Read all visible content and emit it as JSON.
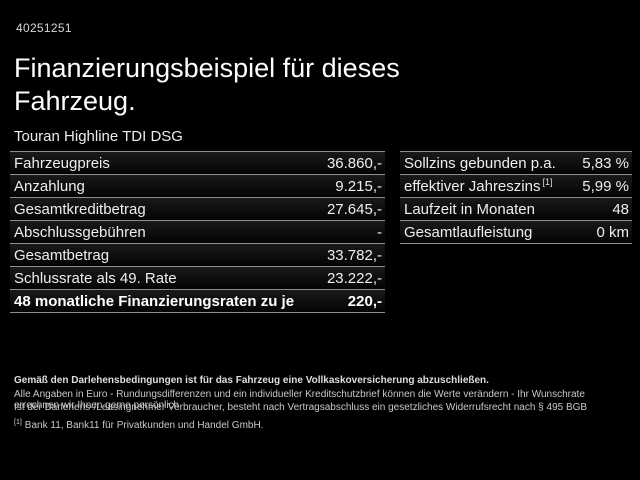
{
  "page": {
    "id_number": "40251251",
    "title": "Finanzierungsbeispiel für dieses Fahrzeug.",
    "subtitle": "Touran Highline TDI DSG"
  },
  "finance_table": {
    "rows": [
      {
        "label": "Fahrzeugpreis",
        "value": "36.860,-"
      },
      {
        "label": "Anzahlung",
        "value": "9.215,-"
      },
      {
        "label": "Gesamtkreditbetrag",
        "value": "27.645,-"
      },
      {
        "label": "Abschlussgebühren",
        "value": "-"
      },
      {
        "label": "Gesamtbetrag",
        "value": "33.782,-"
      },
      {
        "label": "Schlussrate als 49. Rate",
        "value": "23.222,-"
      },
      {
        "label": "48 monatliche Finanzierungsraten zu je",
        "value": "220,-"
      }
    ]
  },
  "conditions_table": {
    "rows": [
      {
        "label": "Sollzins gebunden p.a.",
        "value": "5,83 %"
      },
      {
        "label": "effektiver Jahreszins",
        "footnote_marker": "[1]",
        "value": "5,99 %"
      },
      {
        "label": "Laufzeit in Monaten",
        "value": "48"
      },
      {
        "label": "Gesamtlaufleistung",
        "value": "0 km"
      }
    ]
  },
  "footer": {
    "line1": "Gemäß den Darlehensbedingungen ist für das Fahrzeug eine Vollkaskoversicherung abzuschließen.",
    "line2": "Alle Angaben in Euro - Rundungsdifferenzen und ein individueller Kreditschutzbrief können die Werte verändern - Ihr Wunschrate errechnen wir Ihnen gerne persönlich",
    "line3": "Ist der Darlehens-/Leasingnehmer Verbraucher, besteht nach Vertragsabschluss ein gesetzliches Widerrufsrecht nach § 495 BGB",
    "footnote_marker": "[1]",
    "footnote_text": "Bank 11, Bank11 für Privatkunden und Handel GmbH."
  },
  "colors": {
    "background": "#000000",
    "text_primary": "#ffffff",
    "text_secondary": "#c9c9c9",
    "row_separator": "#8e8e8e"
  }
}
